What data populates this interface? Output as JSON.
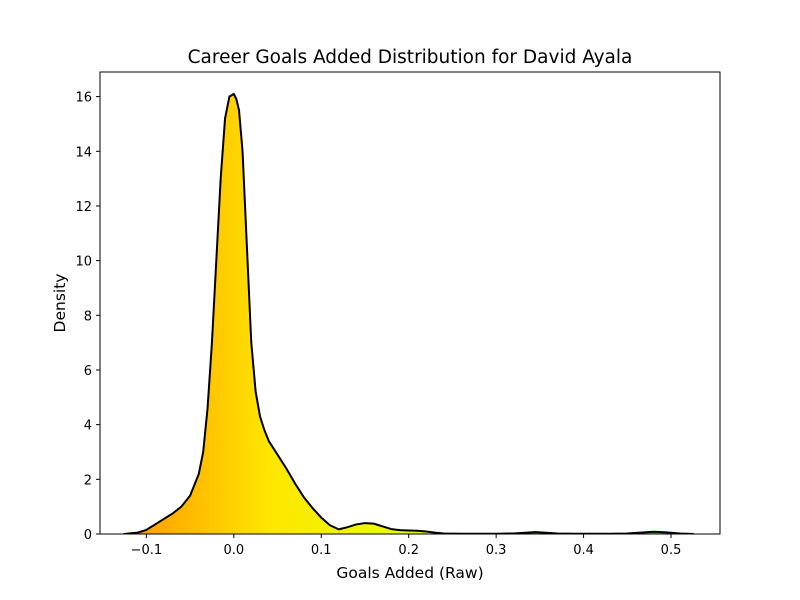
{
  "chart_data": {
    "type": "area",
    "title": "Career Goals Added Distribution for David Ayala",
    "xlabel": "Goals Added (Raw)",
    "ylabel": "Density",
    "xlim": [
      -0.153,
      0.556
    ],
    "ylim": [
      0,
      16.9
    ],
    "xticks": [
      -0.1,
      0.0,
      0.1,
      0.2,
      0.3,
      0.4,
      0.5
    ],
    "xtick_labels": [
      "−0.1",
      "0.0",
      "0.1",
      "0.2",
      "0.3",
      "0.4",
      "0.5"
    ],
    "yticks": [
      0,
      2,
      4,
      6,
      8,
      10,
      12,
      14,
      16
    ],
    "ytick_labels": [
      "0",
      "2",
      "4",
      "6",
      "8",
      "10",
      "12",
      "14",
      "16"
    ],
    "grid": false,
    "legend": false,
    "fill_gradient": [
      "#ff9900",
      "#ffe600",
      "#e6ff00",
      "#99ff00",
      "#33ff00"
    ],
    "line_color": "#000000",
    "series": [
      {
        "x": [
          -0.126,
          -0.11,
          -0.1,
          -0.09,
          -0.08,
          -0.07,
          -0.06,
          -0.05,
          -0.04,
          -0.035,
          -0.03,
          -0.025,
          -0.02,
          -0.015,
          -0.01,
          -0.005,
          0.0,
          0.003,
          0.006,
          0.01,
          0.015,
          0.02,
          0.025,
          0.03,
          0.035,
          0.04,
          0.05,
          0.06,
          0.07,
          0.08,
          0.09,
          0.1,
          0.11,
          0.12,
          0.13,
          0.14,
          0.15,
          0.16,
          0.17,
          0.18,
          0.19,
          0.2,
          0.21,
          0.22,
          0.23,
          0.24,
          0.26,
          0.28,
          0.3,
          0.32,
          0.335,
          0.345,
          0.355,
          0.37,
          0.39,
          0.41,
          0.43,
          0.45,
          0.465,
          0.48,
          0.495,
          0.51,
          0.526
        ],
        "y": [
          0.0,
          0.05,
          0.15,
          0.35,
          0.55,
          0.75,
          1.0,
          1.4,
          2.2,
          3.0,
          4.6,
          7.0,
          10.0,
          13.0,
          15.2,
          16.0,
          16.1,
          15.9,
          15.5,
          14.0,
          10.5,
          7.0,
          5.2,
          4.3,
          3.8,
          3.4,
          2.9,
          2.4,
          1.85,
          1.35,
          0.95,
          0.6,
          0.32,
          0.17,
          0.25,
          0.35,
          0.4,
          0.38,
          0.28,
          0.18,
          0.14,
          0.13,
          0.12,
          0.09,
          0.05,
          0.02,
          0.01,
          0.01,
          0.01,
          0.02,
          0.05,
          0.07,
          0.05,
          0.02,
          0.01,
          0.01,
          0.01,
          0.02,
          0.05,
          0.08,
          0.06,
          0.02,
          0.0
        ]
      }
    ]
  }
}
